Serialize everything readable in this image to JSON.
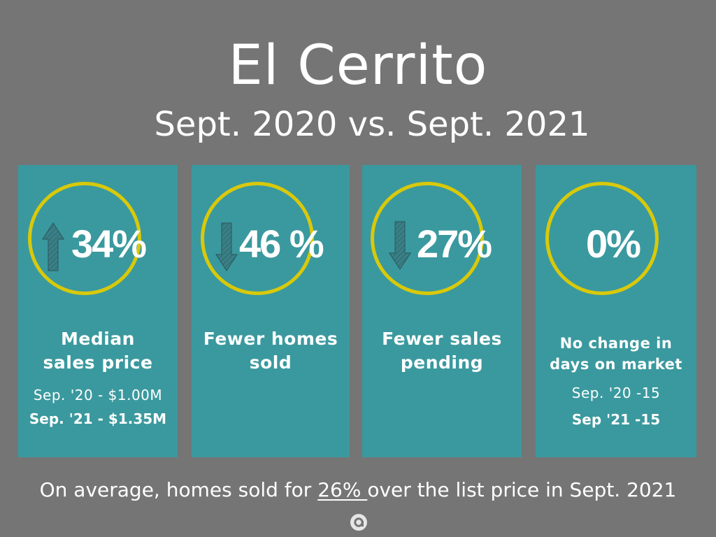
{
  "title": "El Cerrito",
  "subtitle": "Sept. 2020 vs. Sept. 2021",
  "colors": {
    "background": "#757575",
    "panel": "#3a999e",
    "ring": "#d9c90a",
    "arrow": "#3a7f86"
  },
  "cards": [
    {
      "icon": "arrow-up-icon",
      "value": "34%",
      "label_line1": "Median",
      "label_line2": "sales price",
      "detail1": "Sep. '20 - $1.00M",
      "detail2": "Sep. '21 - $1.35M"
    },
    {
      "icon": "arrow-down-icon",
      "value": "46 %",
      "label_line1": "Fewer homes",
      "label_line2": "sold"
    },
    {
      "icon": "arrow-down-icon",
      "value": "27%",
      "label_line1": "Fewer sales",
      "label_line2": "pending"
    },
    {
      "value": "0%",
      "label_line1": "No change in",
      "label_line2": "days on market",
      "detail1": "Sep. '20 -15",
      "detail2": "Sep '21 -15"
    }
  ],
  "footer": {
    "before": "On average, homes sold for ",
    "highlight": "26% ",
    "after": "over the list price in Sept. 2021"
  },
  "logo_icon": "a-logo-icon"
}
